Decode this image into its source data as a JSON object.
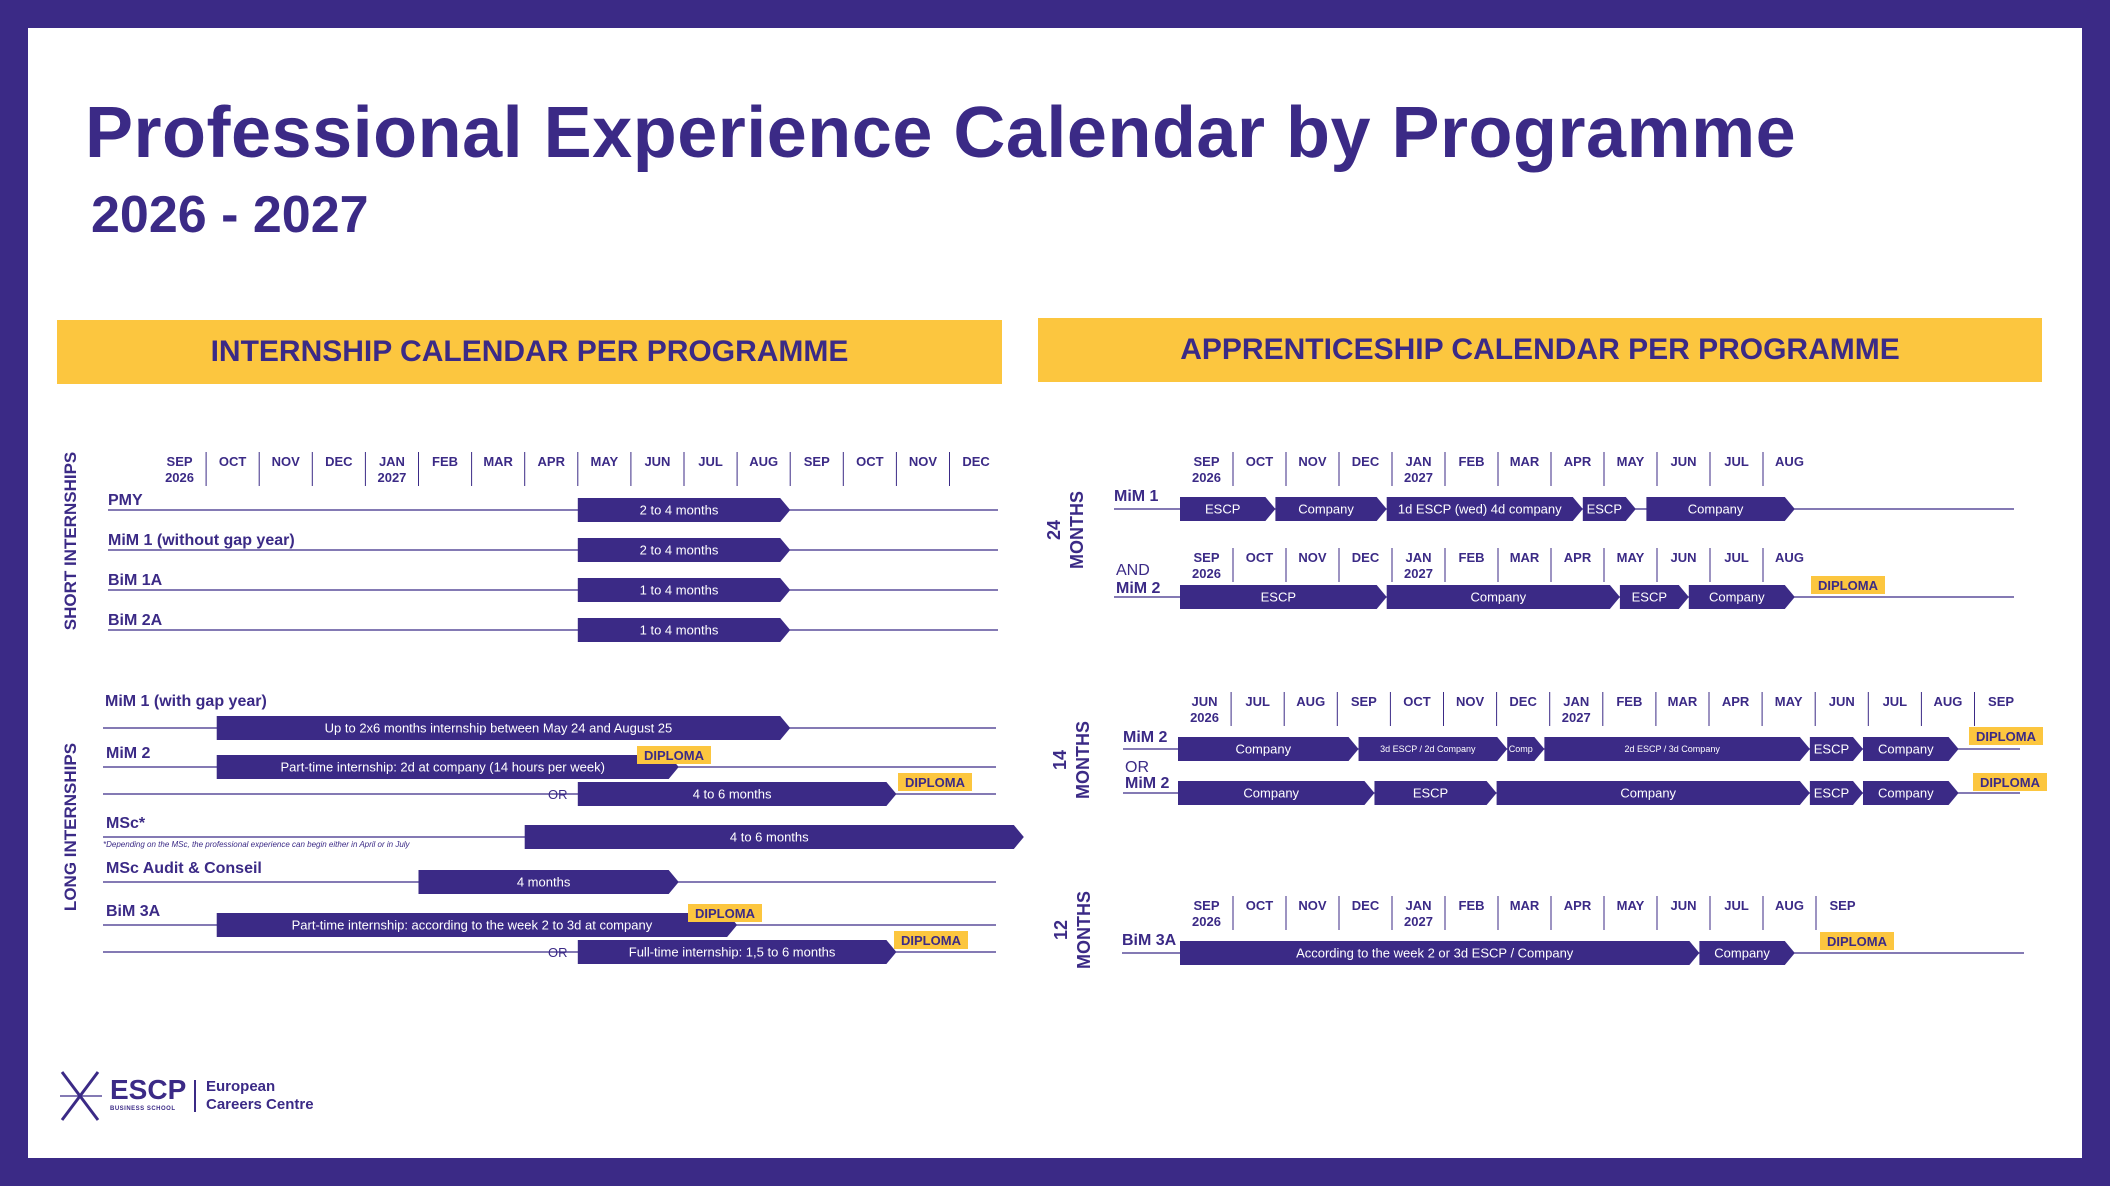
{
  "title": "Professional Experience Calendar by Programme",
  "subtitle": "2026 - 2027",
  "colors": {
    "purple": "#3b2a86",
    "yellow": "#fcc63f",
    "white": "#ffffff"
  },
  "internship": {
    "banner": "INTERNSHIP CALENDAR PER PROGRAMME",
    "months": [
      "SEP",
      "OCT",
      "NOV",
      "DEC",
      "JAN",
      "FEB",
      "MAR",
      "APR",
      "MAY",
      "JUN",
      "JUL",
      "AUG",
      "SEP",
      "OCT",
      "NOV",
      "DEC"
    ],
    "year_labels": [
      {
        "index": 0,
        "text": "2026"
      },
      {
        "index": 4,
        "text": "2027"
      }
    ],
    "short_label": "SHORT INTERNSHIPS",
    "long_label": "LONG INTERNSHIPS",
    "short_rows": [
      {
        "name": "PMY",
        "bars": [
          {
            "start": 8,
            "end": 12,
            "text": "2 to 4 months"
          }
        ]
      },
      {
        "name": "MiM 1 (without gap year)",
        "bars": [
          {
            "start": 8,
            "end": 12,
            "text": "2 to 4 months"
          }
        ]
      },
      {
        "name": "BiM 1A",
        "bars": [
          {
            "start": 8,
            "end": 12,
            "text": "1 to 4 months"
          }
        ]
      },
      {
        "name": "BiM 2A",
        "bars": [
          {
            "start": 8,
            "end": 12,
            "text": "1 to 4 months"
          }
        ]
      }
    ],
    "long_rows": [
      {
        "name": "MiM 1 (with gap year)",
        "bars": [
          {
            "start": 1.2,
            "end": 12,
            "text": "Up to 2x6 months internship between May 24 and August 25"
          }
        ]
      },
      {
        "name": "MiM 2",
        "bars": [
          {
            "start": 1.2,
            "end": 9.9,
            "text": "Part-time internship: 2d at company (14 hours per week)"
          }
        ],
        "diploma": true
      },
      {
        "name": "",
        "or_text": "OR",
        "bars": [
          {
            "start": 8,
            "end": 14,
            "text": "4 to 6 months"
          }
        ],
        "diploma": true
      },
      {
        "name": "MSc*",
        "note": "*Depending on the MSc, the professional experience can begin either in April or in July",
        "bars": [
          {
            "start": 7,
            "end": 16.4,
            "text": "4 to 6 months"
          }
        ]
      },
      {
        "name": "MSc Audit & Conseil",
        "bars": [
          {
            "start": 5,
            "end": 9.9,
            "text": "4 months"
          }
        ]
      },
      {
        "name": "BiM 3A",
        "bars": [
          {
            "start": 1.2,
            "end": 11,
            "text": "Part-time internship: according to the week 2 to 3d at company"
          }
        ],
        "diploma": true
      },
      {
        "name": "",
        "or_text": "OR",
        "bars": [
          {
            "start": 8,
            "end": 14,
            "text": "Full-time internship: 1,5 to 6 months"
          }
        ],
        "diploma": true
      }
    ]
  },
  "apprenticeship": {
    "banner": "APPRENTICESHIP CALENDAR PER PROGRAMME",
    "diploma_text": "DIPLOMA",
    "g24": {
      "label_a": "24",
      "label_b": "MONTHS",
      "months": [
        "SEP",
        "OCT",
        "NOV",
        "DEC",
        "JAN",
        "FEB",
        "MAR",
        "APR",
        "MAY",
        "JUN",
        "JUL",
        "AUG"
      ],
      "year_labels": [
        {
          "index": 0,
          "text": "2026"
        },
        {
          "index": 4,
          "text": "2027"
        }
      ],
      "row1_name": "MiM 1",
      "and_text": "AND",
      "row2_name": "MiM 2",
      "row1_bars": [
        {
          "start": 0,
          "end": 1.8,
          "text": "ESCP"
        },
        {
          "start": 1.8,
          "end": 3.9,
          "text": "Company"
        },
        {
          "start": 3.9,
          "end": 7.6,
          "text": "1d ESCP (wed)  4d company"
        },
        {
          "start": 7.6,
          "end": 8.6,
          "text": "ESCP"
        },
        {
          "start": 8.8,
          "end": 11.6,
          "text": "Company"
        }
      ],
      "row2_bars": [
        {
          "start": 0,
          "end": 3.9,
          "text": "ESCP"
        },
        {
          "start": 3.9,
          "end": 8.3,
          "text": "Company"
        },
        {
          "start": 8.3,
          "end": 9.6,
          "text": "ESCP"
        },
        {
          "start": 9.6,
          "end": 11.6,
          "text": "Company"
        }
      ]
    },
    "g14": {
      "label_a": "14",
      "label_b": "MONTHS",
      "months": [
        "JUN",
        "JUL",
        "AUG",
        "SEP",
        "OCT",
        "NOV",
        "DEC",
        "JAN",
        "FEB",
        "MAR",
        "APR",
        "MAY",
        "JUN",
        "JUL",
        "AUG",
        "SEP"
      ],
      "year_labels": [
        {
          "index": 0,
          "text": "2026"
        },
        {
          "index": 7,
          "text": "2027"
        }
      ],
      "row1_name": "MiM 2",
      "or_text": "OR",
      "row2_name": "MiM 2",
      "row1_bars": [
        {
          "start": 0,
          "end": 3.4,
          "text": "Company",
          "small": false
        },
        {
          "start": 3.4,
          "end": 6.2,
          "text": "3d ESCP / 2d Company",
          "small": true
        },
        {
          "start": 6.2,
          "end": 6.9,
          "text": "Comp",
          "small": true
        },
        {
          "start": 6.9,
          "end": 11.9,
          "text": "2d ESCP / 3d Company",
          "small": true
        },
        {
          "start": 11.9,
          "end": 12.9,
          "text": "ESCP",
          "small": false
        },
        {
          "start": 12.9,
          "end": 14.7,
          "text": "Company",
          "small": false
        }
      ],
      "row2_bars": [
        {
          "start": 0,
          "end": 3.7,
          "text": "Company",
          "small": false
        },
        {
          "start": 3.7,
          "end": 6,
          "text": "ESCP",
          "small": false
        },
        {
          "start": 6,
          "end": 11.9,
          "text": "Company",
          "small": false
        },
        {
          "start": 11.9,
          "end": 12.9,
          "text": "ESCP",
          "small": false
        },
        {
          "start": 12.9,
          "end": 14.7,
          "text": "Company",
          "small": false
        }
      ]
    },
    "g12": {
      "label_a": "12",
      "label_b": "MONTHS",
      "months": [
        "SEP",
        "OCT",
        "NOV",
        "DEC",
        "JAN",
        "FEB",
        "MAR",
        "APR",
        "MAY",
        "JUN",
        "JUL",
        "AUG",
        "SEP"
      ],
      "year_labels": [
        {
          "index": 0,
          "text": "2026"
        },
        {
          "index": 4,
          "text": "2027"
        }
      ],
      "row1_name": "BiM 3A",
      "row1_bars": [
        {
          "start": 0,
          "end": 9.8,
          "text": "According to the week 2 or 3d ESCP / Company"
        },
        {
          "start": 9.8,
          "end": 11.6,
          "text": "Company"
        }
      ]
    }
  },
  "footer": {
    "logo_word": "ESCP",
    "logo_small": "BUSINESS SCHOOL",
    "centre_line1": "European",
    "centre_line2": "Careers Centre"
  }
}
